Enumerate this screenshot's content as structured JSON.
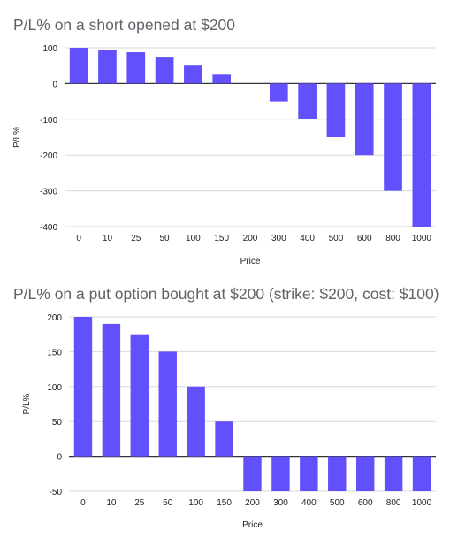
{
  "chart_data": [
    {
      "type": "bar",
      "title": "P/L% on a short opened at $200",
      "xlabel": "Price",
      "ylabel": "P/L%",
      "categories": [
        "0",
        "10",
        "25",
        "50",
        "100",
        "150",
        "200",
        "300",
        "400",
        "500",
        "600",
        "800",
        "1000"
      ],
      "values": [
        100,
        95,
        87.5,
        75,
        50,
        25,
        0,
        -50,
        -100,
        -150,
        -200,
        -300,
        -400
      ],
      "ylim": [
        -400,
        100
      ],
      "yticks": [
        100,
        0,
        -100,
        -200,
        -300,
        -400
      ],
      "grid": true,
      "color": "#6150fb"
    },
    {
      "type": "bar",
      "title": "P/L% on a put option bought at $200 (strike: $200, cost: $100)",
      "xlabel": "Price",
      "ylabel": "P/L%",
      "categories": [
        "0",
        "10",
        "25",
        "50",
        "100",
        "150",
        "200",
        "300",
        "400",
        "500",
        "600",
        "800",
        "1000"
      ],
      "values": [
        200,
        190,
        175,
        150,
        100,
        50,
        -50,
        -50,
        -50,
        -50,
        -50,
        -50,
        -50
      ],
      "ylim": [
        -50,
        200
      ],
      "yticks": [
        200,
        150,
        100,
        50,
        0,
        -50
      ],
      "grid": true,
      "color": "#6150fb"
    }
  ]
}
